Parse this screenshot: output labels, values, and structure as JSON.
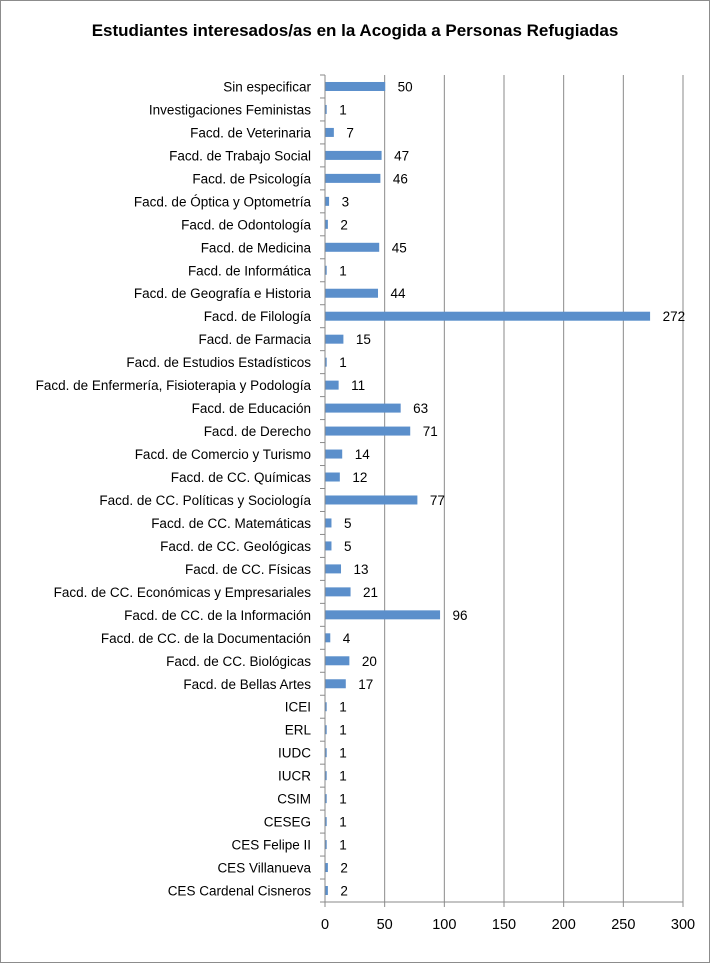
{
  "chart_data": {
    "type": "bar",
    "orientation": "horizontal",
    "title": "Estudiantes interesados/as en la Acogida a Personas Refugiadas",
    "xlim": [
      0,
      300
    ],
    "xticks": [
      0,
      50,
      100,
      150,
      200,
      250,
      300
    ],
    "grid": true,
    "data_labels": true,
    "bar_color": "#5b8fcb",
    "categories": [
      "Sin especificar",
      "Investigaciones Feministas",
      "Facd. de Veterinaria",
      "Facd. de Trabajo Social",
      "Facd. de Psicología",
      "Facd. de Óptica y Optometría",
      "Facd. de Odontología",
      "Facd. de Medicina",
      "Facd. de Informática",
      "Facd. de Geografía e Historia",
      "Facd. de Filología",
      "Facd. de Farmacia",
      "Facd. de Estudios Estadísticos",
      "Facd. de Enfermería, Fisioterapia y Podología",
      "Facd. de Educación",
      "Facd. de Derecho",
      "Facd. de Comercio y Turismo",
      "Facd. de CC. Químicas",
      "Facd. de CC. Políticas y Sociología",
      "Facd. de CC. Matemáticas",
      "Facd. de CC. Geológicas",
      "Facd. de CC. Físicas",
      "Facd. de CC. Económicas y Empresariales",
      "Facd. de CC. de la Información",
      "Facd. de CC. de la Documentación",
      "Facd. de CC. Biológicas",
      "Facd. de Bellas Artes",
      "ICEI",
      "ERL",
      "IUDC",
      "IUCR",
      "CSIM",
      "CESEG",
      "CES Felipe II",
      "CES Villanueva",
      "CES Cardenal Cisneros"
    ],
    "values": [
      50,
      1,
      7,
      47,
      46,
      3,
      2,
      45,
      1,
      44,
      272,
      15,
      1,
      11,
      63,
      71,
      14,
      12,
      77,
      5,
      5,
      13,
      21,
      96,
      4,
      20,
      17,
      1,
      1,
      1,
      1,
      1,
      1,
      1,
      2,
      2
    ]
  }
}
